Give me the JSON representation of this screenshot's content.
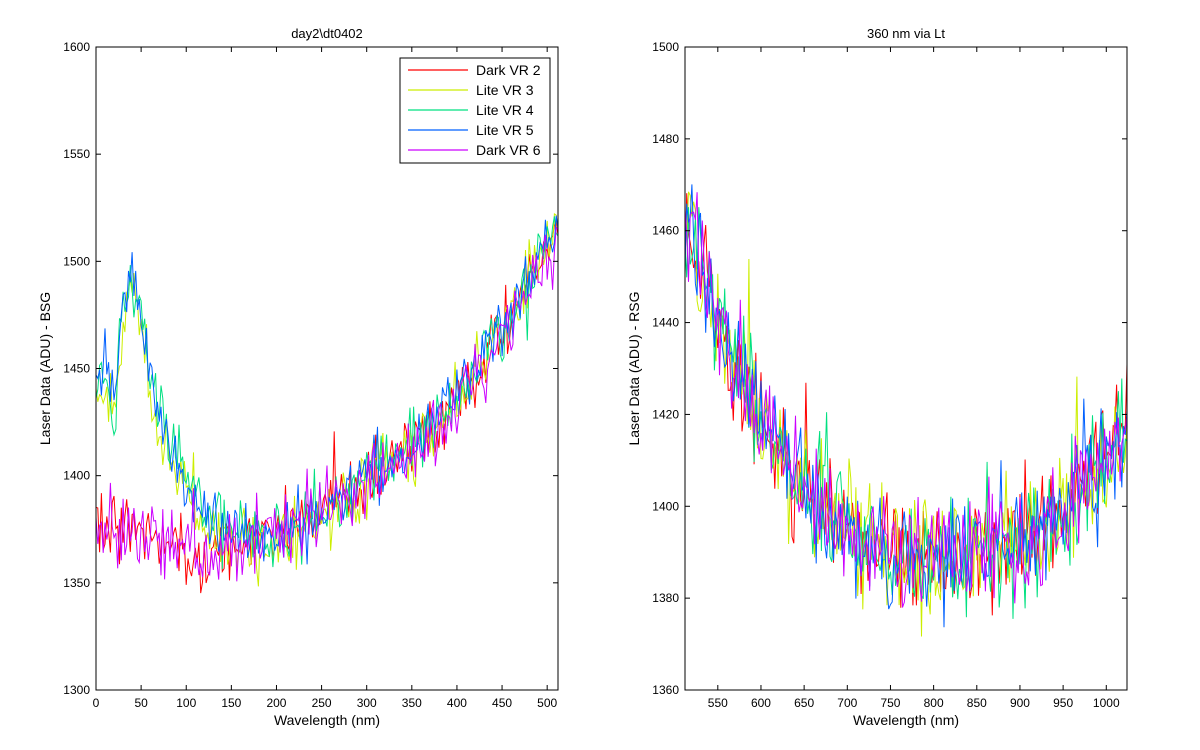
{
  "figure": {
    "background": "#ffffff"
  },
  "chart_data": [
    {
      "type": "line",
      "title": "day2\\dt0402",
      "xlabel": "Wavelength (nm)",
      "ylabel": "Laser Data (ADU) - BSG",
      "xlim": [
        0,
        512
      ],
      "ylim": [
        1300,
        1600
      ],
      "xticks": [
        0,
        50,
        100,
        150,
        200,
        250,
        300,
        350,
        400,
        450,
        500
      ],
      "yticks": [
        1300,
        1350,
        1400,
        1450,
        1500,
        1550,
        1600
      ],
      "legend": {
        "position": "top-right",
        "entries": [
          "Dark VR 2",
          "Lite VR 3",
          "Lite VR 4",
          "Lite VR 5",
          "Dark VR 6"
        ]
      },
      "grid": false,
      "sampling": {
        "x_start": 0,
        "x_end": 512,
        "step": 2
      },
      "series": [
        {
          "name": "Dark VR 2",
          "color": "#ff0000",
          "anchors": [
            [
              0,
              1380
            ],
            [
              40,
              1375
            ],
            [
              80,
              1370
            ],
            [
              110,
              1365
            ],
            [
              130,
              1362
            ],
            [
              160,
              1368
            ],
            [
              200,
              1375
            ],
            [
              250,
              1385
            ],
            [
              300,
              1398
            ],
            [
              350,
              1412
            ],
            [
              400,
              1435
            ],
            [
              450,
              1468
            ],
            [
              480,
              1490
            ],
            [
              512,
              1515
            ]
          ],
          "noise": 11
        },
        {
          "name": "Lite VR 3",
          "color": "#ccee00",
          "anchors": [
            [
              0,
              1440
            ],
            [
              10,
              1445
            ],
            [
              20,
              1425
            ],
            [
              30,
              1470
            ],
            [
              40,
              1490
            ],
            [
              50,
              1465
            ],
            [
              70,
              1425
            ],
            [
              90,
              1400
            ],
            [
              110,
              1385
            ],
            [
              140,
              1370
            ],
            [
              180,
              1368
            ],
            [
              220,
              1372
            ],
            [
              260,
              1385
            ],
            [
              300,
              1398
            ],
            [
              350,
              1412
            ],
            [
              400,
              1435
            ],
            [
              450,
              1468
            ],
            [
              480,
              1490
            ],
            [
              512,
              1515
            ]
          ],
          "noise": 12
        },
        {
          "name": "Lite VR 4",
          "color": "#00e080",
          "anchors": [
            [
              0,
              1440
            ],
            [
              10,
              1450
            ],
            [
              20,
              1430
            ],
            [
              30,
              1475
            ],
            [
              40,
              1495
            ],
            [
              50,
              1470
            ],
            [
              70,
              1428
            ],
            [
              90,
              1405
            ],
            [
              110,
              1388
            ],
            [
              140,
              1375
            ],
            [
              180,
              1370
            ],
            [
              220,
              1375
            ],
            [
              260,
              1387
            ],
            [
              300,
              1400
            ],
            [
              350,
              1414
            ],
            [
              400,
              1437
            ],
            [
              450,
              1470
            ],
            [
              480,
              1492
            ],
            [
              512,
              1517
            ]
          ],
          "noise": 11
        },
        {
          "name": "Lite VR 5",
          "color": "#0060ff",
          "anchors": [
            [
              0,
              1440
            ],
            [
              10,
              1455
            ],
            [
              20,
              1435
            ],
            [
              30,
              1480
            ],
            [
              40,
              1500
            ],
            [
              50,
              1470
            ],
            [
              70,
              1430
            ],
            [
              90,
              1405
            ],
            [
              110,
              1388
            ],
            [
              140,
              1375
            ],
            [
              180,
              1370
            ],
            [
              220,
              1374
            ],
            [
              260,
              1386
            ],
            [
              300,
              1400
            ],
            [
              350,
              1414
            ],
            [
              400,
              1436
            ],
            [
              450,
              1470
            ],
            [
              480,
              1492
            ],
            [
              512,
              1516
            ]
          ],
          "noise": 11
        },
        {
          "name": "Dark VR 6",
          "color": "#cc00ff",
          "anchors": [
            [
              0,
              1378
            ],
            [
              40,
              1373
            ],
            [
              80,
              1368
            ],
            [
              110,
              1362
            ],
            [
              130,
              1360
            ],
            [
              160,
              1366
            ],
            [
              200,
              1373
            ],
            [
              250,
              1383
            ],
            [
              300,
              1396
            ],
            [
              350,
              1410
            ],
            [
              400,
              1433
            ],
            [
              450,
              1466
            ],
            [
              480,
              1488
            ],
            [
              512,
              1512
            ]
          ],
          "noise": 12
        }
      ]
    },
    {
      "type": "line",
      "title": "360 nm via Lt",
      "xlabel": "Wavelength (nm)",
      "ylabel": "Laser Data (ADU) - RSG",
      "xlim": [
        512,
        1024
      ],
      "ylim": [
        1360,
        1500
      ],
      "xticks": [
        550,
        600,
        650,
        700,
        750,
        800,
        850,
        900,
        950,
        1000
      ],
      "yticks": [
        1360,
        1380,
        1400,
        1420,
        1440,
        1460,
        1480,
        1500
      ],
      "grid": false,
      "sampling": {
        "x_start": 512,
        "x_end": 1024,
        "step": 2
      },
      "series": [
        {
          "name": "Dark VR 2",
          "color": "#ff0000",
          "anchors": [
            [
              512,
              1462
            ],
            [
              530,
              1455
            ],
            [
              560,
              1435
            ],
            [
              600,
              1418
            ],
            [
              650,
              1403
            ],
            [
              700,
              1394
            ],
            [
              750,
              1390
            ],
            [
              800,
              1387
            ],
            [
              850,
              1390
            ],
            [
              900,
              1393
            ],
            [
              950,
              1398
            ],
            [
              990,
              1408
            ],
            [
              1024,
              1418
            ]
          ],
          "noise": 9
        },
        {
          "name": "Lite VR 3",
          "color": "#ccee00",
          "anchors": [
            [
              512,
              1462
            ],
            [
              530,
              1455
            ],
            [
              560,
              1435
            ],
            [
              600,
              1418
            ],
            [
              650,
              1403
            ],
            [
              700,
              1394
            ],
            [
              750,
              1390
            ],
            [
              800,
              1387
            ],
            [
              850,
              1390
            ],
            [
              900,
              1393
            ],
            [
              950,
              1398
            ],
            [
              990,
              1408
            ],
            [
              1024,
              1418
            ]
          ],
          "noise": 9
        },
        {
          "name": "Lite VR 4",
          "color": "#00e080",
          "anchors": [
            [
              512,
              1462
            ],
            [
              530,
              1455
            ],
            [
              560,
              1435
            ],
            [
              600,
              1418
            ],
            [
              650,
              1403
            ],
            [
              700,
              1394
            ],
            [
              750,
              1390
            ],
            [
              800,
              1387
            ],
            [
              850,
              1390
            ],
            [
              900,
              1393
            ],
            [
              950,
              1398
            ],
            [
              990,
              1408
            ],
            [
              1024,
              1418
            ]
          ],
          "noise": 9
        },
        {
          "name": "Lite VR 5",
          "color": "#0060ff",
          "anchors": [
            [
              512,
              1462
            ],
            [
              530,
              1455
            ],
            [
              560,
              1435
            ],
            [
              600,
              1418
            ],
            [
              650,
              1403
            ],
            [
              700,
              1394
            ],
            [
              750,
              1390
            ],
            [
              800,
              1387
            ],
            [
              850,
              1390
            ],
            [
              900,
              1393
            ],
            [
              950,
              1398
            ],
            [
              990,
              1408
            ],
            [
              1024,
              1418
            ]
          ],
          "noise": 9
        },
        {
          "name": "Dark VR 6",
          "color": "#cc00ff",
          "anchors": [
            [
              512,
              1465
            ],
            [
              530,
              1458
            ],
            [
              560,
              1436
            ],
            [
              600,
              1418
            ],
            [
              650,
              1403
            ],
            [
              700,
              1394
            ],
            [
              750,
              1390
            ],
            [
              800,
              1387
            ],
            [
              850,
              1390
            ],
            [
              900,
              1393
            ],
            [
              950,
              1398
            ],
            [
              990,
              1408
            ],
            [
              1024,
              1420
            ]
          ],
          "noise": 9
        }
      ]
    }
  ]
}
